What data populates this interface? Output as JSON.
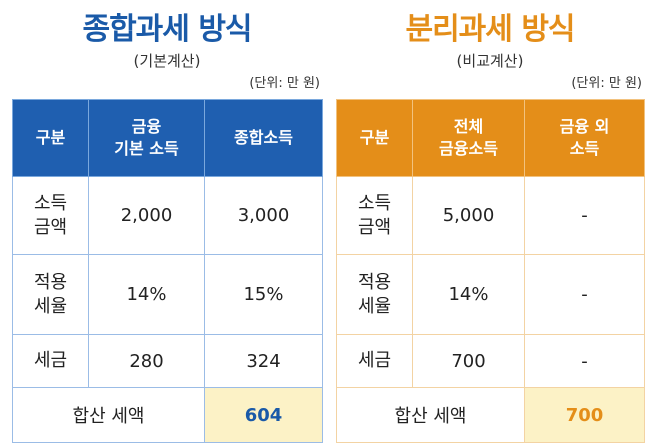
{
  "left": {
    "title": "종합과세 방식",
    "title_color": "#1a5aa8",
    "subtitle": "(기본계산)",
    "unit": "(단위: 만 원)",
    "header_color": "#1f5fb0",
    "headers": [
      "구분",
      "금융\n기본 소득",
      "종합소득"
    ],
    "rows": [
      {
        "label": "소득\n금액",
        "v1": "2,000",
        "v2": "3,000"
      },
      {
        "label": "적용\n세율",
        "v1": "14%",
        "v2": "15%"
      },
      {
        "label": "세금",
        "v1": "280",
        "v2": "324"
      }
    ],
    "total_label": "합산 세액",
    "total_value": "604"
  },
  "right": {
    "title": "분리과세 방식",
    "title_color": "#e48e19",
    "subtitle": "(비교계산)",
    "unit": "(단위: 만 원)",
    "header_color": "#e48e19",
    "headers": [
      "구분",
      "전체\n금융소득",
      "금융 외\n소득"
    ],
    "rows": [
      {
        "label": "소득\n금액",
        "v1": "5,000",
        "v2": "-"
      },
      {
        "label": "적용\n세율",
        "v1": "14%",
        "v2": "-"
      },
      {
        "label": "세금",
        "v1": "700",
        "v2": "-"
      }
    ],
    "total_label": "합산 세액",
    "total_value": "700"
  }
}
